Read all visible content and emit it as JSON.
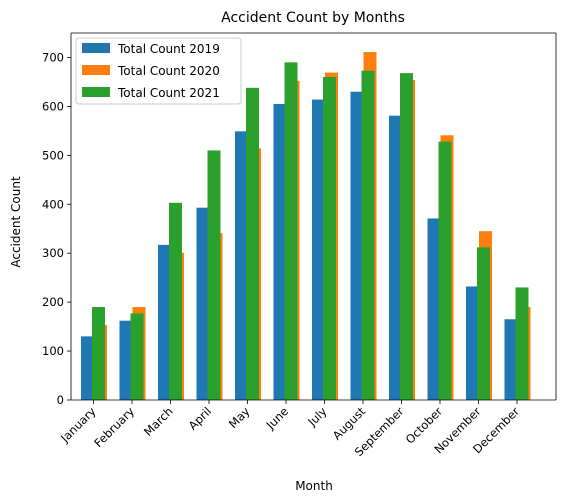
{
  "chart_data": {
    "type": "bar",
    "title": "Accident Count by Months",
    "xlabel": "Month",
    "ylabel": "Accident Count",
    "ylim": [
      0,
      750
    ],
    "yticks": [
      0,
      100,
      200,
      300,
      400,
      500,
      600,
      700
    ],
    "categories": [
      "January",
      "February",
      "March",
      "April",
      "May",
      "June",
      "July",
      "August",
      "September",
      "October",
      "November",
      "December"
    ],
    "series": [
      {
        "name": "Total Count 2019",
        "color": "#1f77b4",
        "values": [
          130,
          162,
          317,
          393,
          549,
          605,
          614,
          630,
          581,
          371,
          232,
          165
        ]
      },
      {
        "name": "Total Count 2020",
        "color": "#ff7f0e",
        "values": [
          153,
          190,
          301,
          341,
          514,
          652,
          669,
          711,
          654,
          541,
          345,
          190
        ]
      },
      {
        "name": "Total Count 2021",
        "color": "#2ca02c",
        "values": [
          190,
          177,
          403,
          510,
          638,
          690,
          660,
          673,
          668,
          528,
          312,
          230
        ]
      }
    ],
    "grid": false,
    "legend_position": "top-left"
  }
}
